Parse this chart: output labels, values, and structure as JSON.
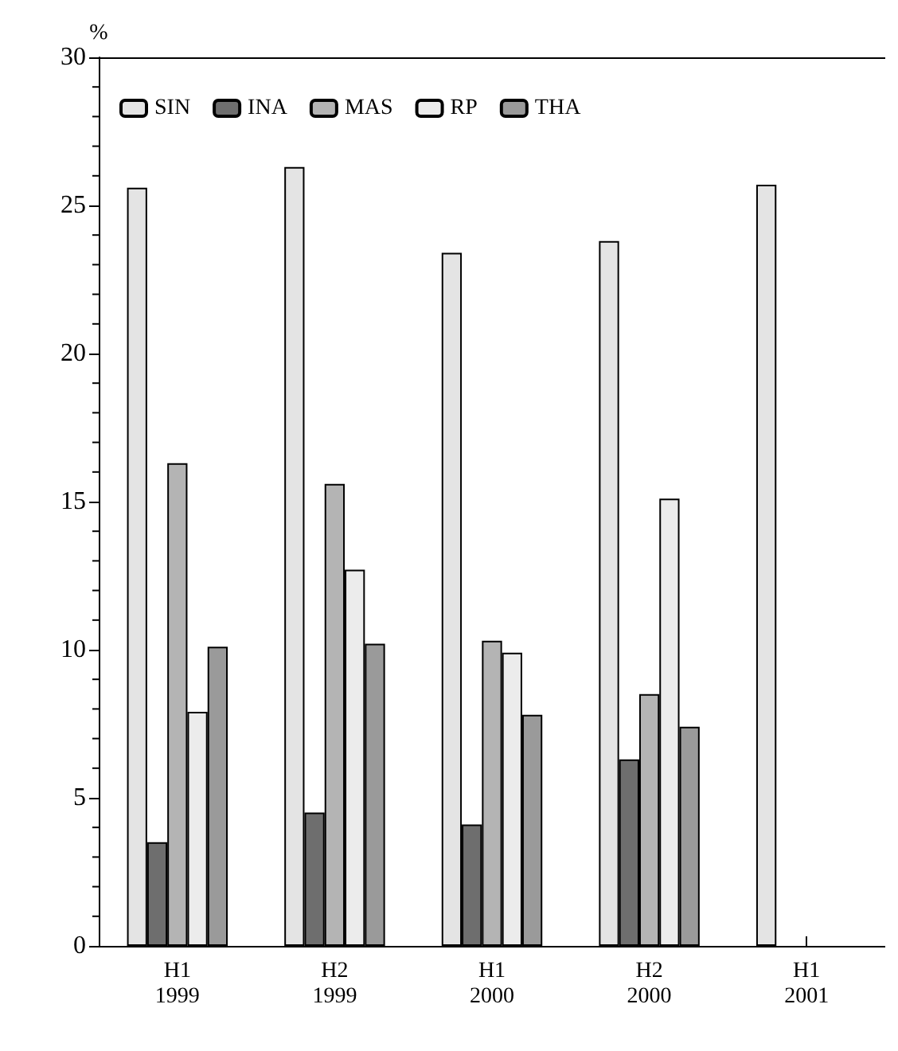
{
  "chart_data": {
    "type": "bar",
    "ylabel": "%",
    "categories": [
      "H1\n1999",
      "H2\n1999",
      "H1\n2000",
      "H2\n2000",
      "H1\n2001"
    ],
    "series": [
      {
        "name": "SIN",
        "color": "#e4e4e4",
        "values": [
          25.6,
          26.3,
          23.4,
          23.8,
          25.7
        ]
      },
      {
        "name": "INA",
        "color": "#6e6e6e",
        "values": [
          3.5,
          4.5,
          4.1,
          6.3,
          null
        ]
      },
      {
        "name": "MAS",
        "color": "#b4b4b4",
        "values": [
          16.3,
          15.6,
          10.3,
          8.5,
          null
        ]
      },
      {
        "name": "RP",
        "color": "#ececec",
        "values": [
          7.9,
          12.7,
          9.9,
          15.1,
          null
        ]
      },
      {
        "name": "THA",
        "color": "#9a9a9a",
        "values": [
          10.1,
          10.2,
          7.8,
          7.4,
          null
        ]
      }
    ],
    "ylim": [
      0,
      30
    ],
    "yticks": [
      0,
      5,
      10,
      15,
      20,
      25,
      30
    ],
    "grid": false,
    "legend": "top left"
  }
}
